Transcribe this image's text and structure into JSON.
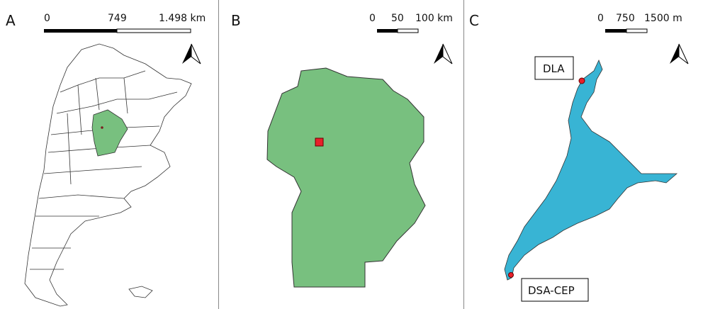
{
  "panels": [
    {
      "label": "A",
      "scale": {
        "ticks": [
          "0",
          "749",
          "1.498 km"
        ]
      }
    },
    {
      "label": "B",
      "scale": {
        "ticks": [
          "0",
          "50",
          "100 km"
        ]
      }
    },
    {
      "label": "C",
      "scale": {
        "ticks": [
          "0",
          "750",
          "1500 m"
        ]
      },
      "sites": [
        {
          "name": "DLA"
        },
        {
          "name": "DSA-CEP"
        }
      ]
    }
  ],
  "colors": {
    "province": "#78c07f",
    "lake": "#38b4d4",
    "site": "#e8202a",
    "outline": "#333333"
  },
  "icons": [
    "north-arrow-icon"
  ]
}
